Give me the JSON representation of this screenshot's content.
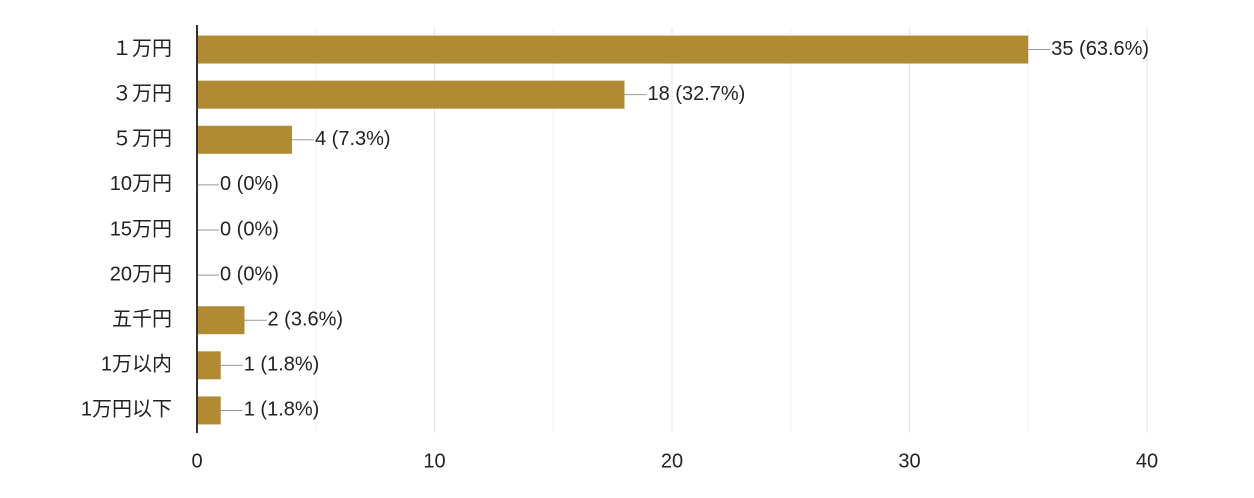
{
  "chart_data": {
    "type": "bar",
    "orientation": "horizontal",
    "categories": [
      "１万円",
      "３万円",
      "５万円",
      "10万円",
      "15万円",
      "20万円",
      "五千円",
      "1万以内",
      "1万円以下"
    ],
    "values": [
      35,
      18,
      4,
      0,
      0,
      0,
      2,
      1,
      1
    ],
    "value_labels": [
      "35 (63.6%)",
      "18 (32.7%)",
      "4 (7.3%)",
      "0 (0%)",
      "0 (0%)",
      "0 (0%)",
      "2 (3.6%)",
      "1 (1.8%)",
      "1 (1.8%)"
    ],
    "color": "#b08b34",
    "xlim": [
      0,
      40
    ],
    "xticks": [
      0,
      10,
      20,
      30,
      40
    ],
    "minor_grid": [
      5,
      15,
      25,
      35
    ],
    "grid": true
  }
}
